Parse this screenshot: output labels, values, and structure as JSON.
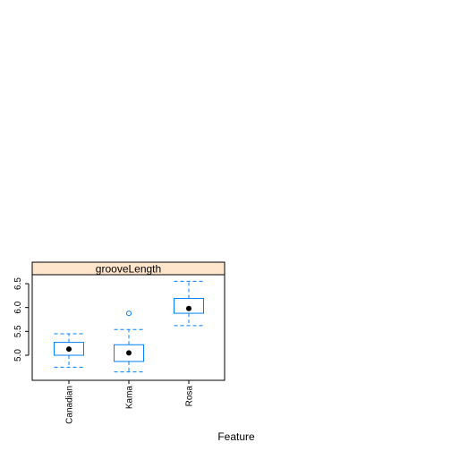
{
  "chart_data": {
    "type": "box",
    "panel_title": "grooveLength",
    "xlabel": "Feature",
    "ylabel": "",
    "ylim": [
      4.65,
      6.7
    ],
    "yticks": [
      5.0,
      5.5,
      6.0,
      6.5
    ],
    "ytick_labels": [
      "5.0",
      "5.5",
      "6.0",
      "6.5"
    ],
    "categories": [
      "Canadian",
      "Kama",
      "Rosa"
    ],
    "boxes": [
      {
        "category": "Canadian",
        "whisker_low": 4.75,
        "q1": 5.0,
        "median": 5.13,
        "q3": 5.27,
        "whisker_high": 5.45,
        "outliers": []
      },
      {
        "category": "Kama",
        "whisker_low": 4.65,
        "q1": 4.87,
        "median": 5.05,
        "q3": 5.22,
        "whisker_high": 5.54,
        "outliers": [
          5.88
        ]
      },
      {
        "category": "Rosa",
        "whisker_low": 5.62,
        "q1": 5.88,
        "median": 5.98,
        "q3": 6.19,
        "whisker_high": 6.55,
        "outliers": []
      }
    ],
    "colors": {
      "box": "#0080ff",
      "strip_bg": "#ffe5cc",
      "median_dot": "#000000"
    }
  }
}
